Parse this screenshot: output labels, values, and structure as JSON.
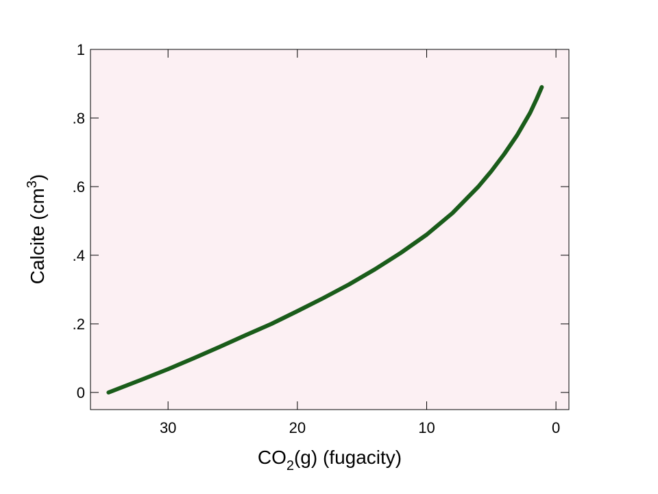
{
  "chart_data": {
    "type": "line",
    "xlabel": {
      "main": "CO",
      "subscript": "2",
      "rest": "(g) (fugacity)"
    },
    "ylabel": {
      "main": "Calcite (cm",
      "superscript": "3",
      "close": ")"
    },
    "xlim": [
      36,
      -1
    ],
    "ylim": [
      -0.05,
      1
    ],
    "x_reversed": true,
    "xticks": [
      {
        "value": 30,
        "label": "30"
      },
      {
        "value": 20,
        "label": "20"
      },
      {
        "value": 10,
        "label": "10"
      },
      {
        "value": 0,
        "label": "0"
      }
    ],
    "yticks": [
      {
        "value": 0,
        "label": "0"
      },
      {
        "value": 0.2,
        "label": ".2"
      },
      {
        "value": 0.4,
        "label": ".4"
      },
      {
        "value": 0.6,
        "label": ".6"
      },
      {
        "value": 0.8,
        "label": ".8"
      },
      {
        "value": 1,
        "label": "1"
      }
    ],
    "grid": false,
    "colors": {
      "plot_background": "#fcf0f3",
      "line": "#1a5c1a",
      "axis": "#000000"
    },
    "series": [
      {
        "x": [
          34.6,
          32,
          30,
          28,
          26,
          24,
          22,
          20,
          18,
          16,
          14,
          12,
          10,
          8,
          6,
          5,
          4,
          3,
          2,
          1.5,
          1.1
        ],
        "y": [
          0,
          0.038,
          0.068,
          0.1,
          0.133,
          0.167,
          0.2,
          0.237,
          0.275,
          0.315,
          0.359,
          0.407,
          0.46,
          0.523,
          0.6,
          0.645,
          0.695,
          0.75,
          0.815,
          0.855,
          0.89
        ]
      }
    ]
  }
}
